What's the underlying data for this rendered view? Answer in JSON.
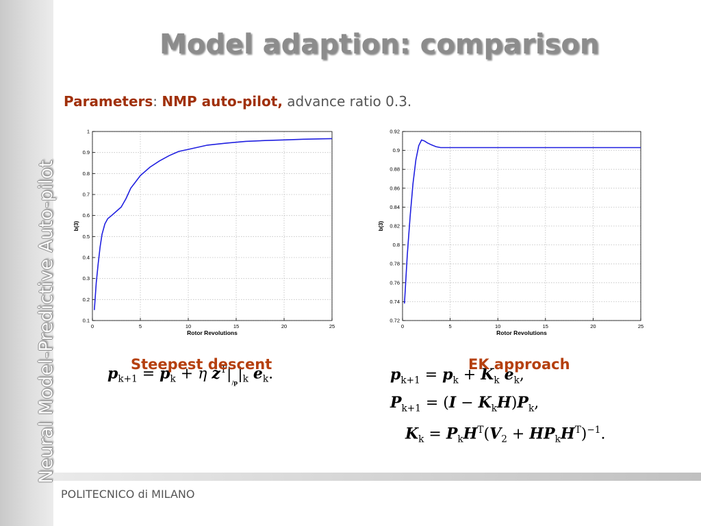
{
  "sidebar": {
    "title": "Neural Model-Predictive Auto-pilot"
  },
  "slide": {
    "title": "Model adaption: comparison",
    "params_label": "Parameters",
    "params_sep": ":",
    "params_value": "NMP auto-pilot,",
    "params_rest": "advance ratio 0.3."
  },
  "methods": {
    "left": "Steepest descent",
    "right": "EK approach"
  },
  "equations": {
    "steepest": "p_{k+1} = p_k + η z^T|_{/p}|_k e_k.",
    "ek_1": "p_{k+1} = p_k + K_k e_k,",
    "ek_2": "P_{k+1} = (I − K_k H) P_k,",
    "ek_3": "K_k = P_k H^T (V_2 + H P_k H^T)^{−1}."
  },
  "footer": {
    "institution": "POLITECNICO di MILANO"
  },
  "colors": {
    "line": "#1f1fe0",
    "accent": "#b5400f",
    "grid": "#bdbdbd"
  },
  "chart_data": [
    {
      "type": "line",
      "title": "",
      "xlabel": "Rotor Revolutions",
      "ylabel": "b(3)",
      "xlim": [
        0,
        25
      ],
      "ylim": [
        0.1,
        1
      ],
      "xticks": [
        0,
        5,
        10,
        15,
        20,
        25
      ],
      "yticks": [
        0.1,
        0.2,
        0.3,
        0.4,
        0.5,
        0.6,
        0.7,
        0.8,
        0.9,
        1
      ],
      "grid": true,
      "series": [
        {
          "x": [
            0.2,
            0.4,
            0.6,
            0.8,
            1.0,
            1.3,
            1.6,
            2.0,
            2.5,
            3.0,
            3.5,
            4.0,
            4.5,
            5.0,
            6,
            7,
            8,
            9,
            10,
            12,
            14,
            16,
            18,
            20,
            22,
            24,
            25
          ],
          "y": [
            0.15,
            0.28,
            0.37,
            0.45,
            0.51,
            0.56,
            0.585,
            0.6,
            0.62,
            0.64,
            0.68,
            0.73,
            0.76,
            0.79,
            0.83,
            0.86,
            0.885,
            0.905,
            0.915,
            0.935,
            0.945,
            0.953,
            0.957,
            0.96,
            0.963,
            0.965,
            0.966
          ]
        }
      ]
    },
    {
      "type": "line",
      "title": "",
      "xlabel": "Rotor Revolutions",
      "ylabel": "b(3)",
      "xlim": [
        0,
        25
      ],
      "ylim": [
        0.72,
        0.92
      ],
      "xticks": [
        0,
        5,
        10,
        15,
        20,
        25
      ],
      "yticks": [
        0.72,
        0.74,
        0.76,
        0.78,
        0.8,
        0.82,
        0.84,
        0.86,
        0.88,
        0.9,
        0.92
      ],
      "grid": true,
      "series": [
        {
          "x": [
            0.2,
            0.5,
            0.8,
            1.1,
            1.4,
            1.7,
            2.0,
            2.3,
            2.6,
            3.0,
            3.5,
            4.0,
            5,
            7,
            10,
            15,
            20,
            25
          ],
          "y": [
            0.738,
            0.79,
            0.83,
            0.865,
            0.89,
            0.905,
            0.911,
            0.91,
            0.908,
            0.906,
            0.904,
            0.903,
            0.903,
            0.903,
            0.903,
            0.903,
            0.903,
            0.903
          ]
        }
      ]
    }
  ]
}
